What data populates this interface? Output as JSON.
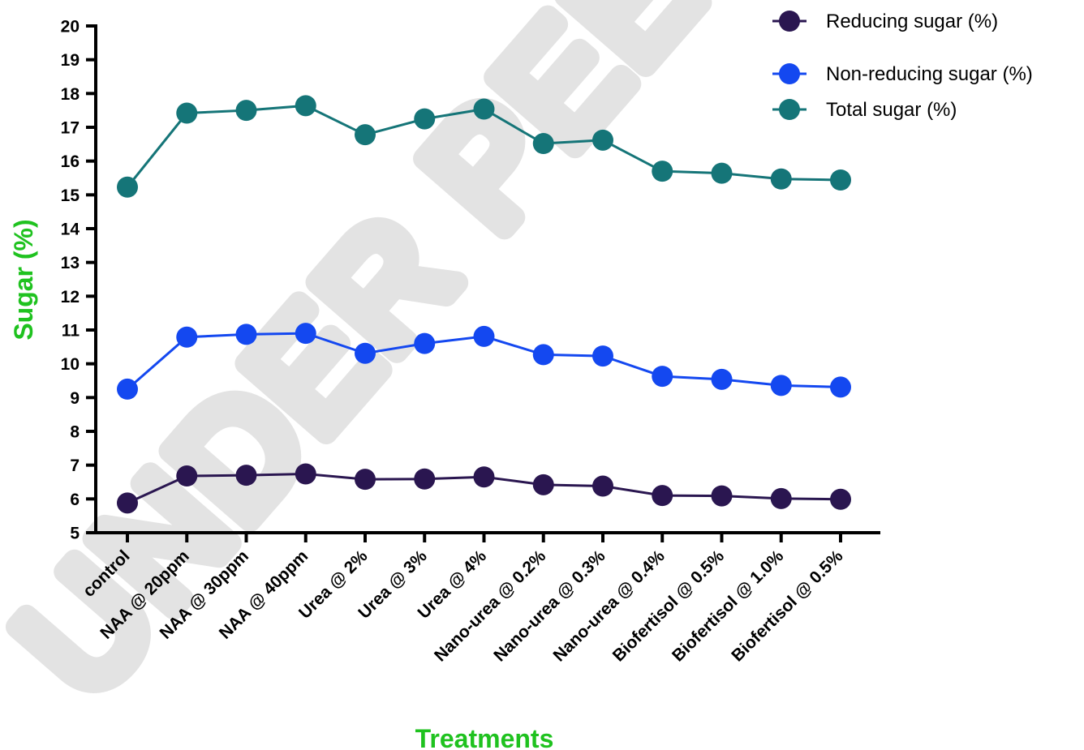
{
  "watermark": "UNDER PEER REVIEW",
  "chart_data": {
    "type": "line",
    "title": "",
    "xlabel": "Treatments",
    "ylabel": "Sugar (%)",
    "ylim": [
      5,
      20
    ],
    "yticks": [
      "5",
      "6",
      "7",
      "8",
      "9",
      "10",
      "11",
      "12",
      "13",
      "14",
      "15",
      "16",
      "17",
      "18",
      "19",
      "20"
    ],
    "grid": false,
    "legend_position": "top-right",
    "axis_title_color": "#1fc21f",
    "categories": [
      "control",
      "NAA @ 20ppm",
      "NAA @ 30ppm",
      "NAA @ 40ppm",
      "Urea @ 2%",
      "Urea @ 3%",
      "Urea @ 4%",
      "Nano-urea @ 0.2%",
      "Nano-urea @ 0.3%",
      "Nano-urea @ 0.4%",
      "Biofertisol @ 0.5%",
      "Biofertisol @ 1.0%",
      "Biofertisol @ 0.5%"
    ],
    "series": [
      {
        "name": "Reducing sugar (%)",
        "color": "#2a1650",
        "values": [
          5.88,
          6.68,
          6.7,
          6.74,
          6.58,
          6.59,
          6.65,
          6.42,
          6.38,
          6.1,
          6.09,
          6.01,
          5.99
        ]
      },
      {
        "name": "Non-reducing sugar (%)",
        "color": "#1448f0",
        "values": [
          9.25,
          10.79,
          10.87,
          10.9,
          10.31,
          10.6,
          10.81,
          10.27,
          10.23,
          9.63,
          9.54,
          9.36,
          9.31
        ]
      },
      {
        "name": "Total sugar (%)",
        "color": "#157578",
        "values": [
          15.23,
          17.42,
          17.5,
          17.64,
          16.78,
          17.25,
          17.54,
          16.52,
          16.62,
          15.7,
          15.64,
          15.47,
          15.44
        ]
      }
    ]
  }
}
